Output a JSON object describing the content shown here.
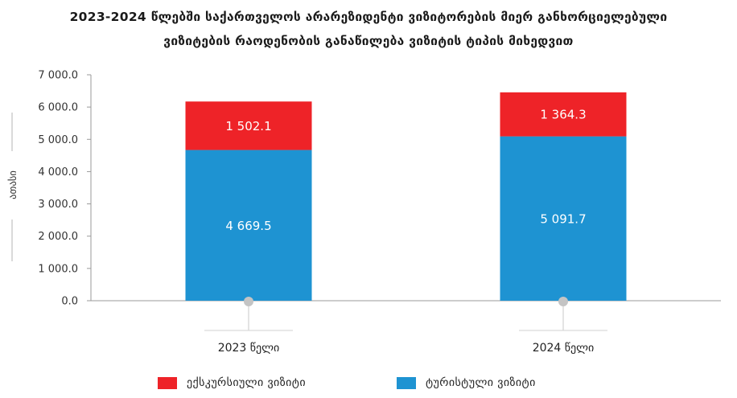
{
  "title_line1": "2023-2024 წლებში საქართველოს არარეზიდენტი ვიზიტორების მიერ განხორციელებული",
  "title_line2": "ვიზიტების რაოდენობის განაწილება ვიზიტის ტიპის მიხედვით",
  "chart_data": {
    "type": "bar",
    "stacked": true,
    "categories": [
      "2023 წელი",
      "2024 წელი"
    ],
    "series": [
      {
        "name": "ტურისტული ვიზიტი",
        "values": [
          4669.5,
          5091.7
        ],
        "labels": [
          "4 669.5",
          "5 091.7"
        ],
        "color": "#1e93d2"
      },
      {
        "name": "ექსკურსიული ვიზიტი",
        "values": [
          1502.1,
          1364.3
        ],
        "labels": [
          "1 502.1",
          "1 364.3"
        ],
        "color": "#ee2328"
      }
    ],
    "ylabel": "ათასი",
    "ylim": [
      0,
      7000
    ],
    "yticks": [
      0,
      1000,
      2000,
      3000,
      4000,
      5000,
      6000,
      7000
    ],
    "ytick_labels": [
      "0.0",
      "1 000.0",
      "2 000.0",
      "3 000.0",
      "4 000.0",
      "5 000.0",
      "6 000.0",
      "7 000.0"
    ],
    "grid": false,
    "legend_position": "bottom"
  },
  "legend": [
    {
      "label": "ექსკურსიული ვიზიტი",
      "color": "#ee2328"
    },
    {
      "label": "ტურისტული ვიზიტი",
      "color": "#1e93d2"
    }
  ]
}
